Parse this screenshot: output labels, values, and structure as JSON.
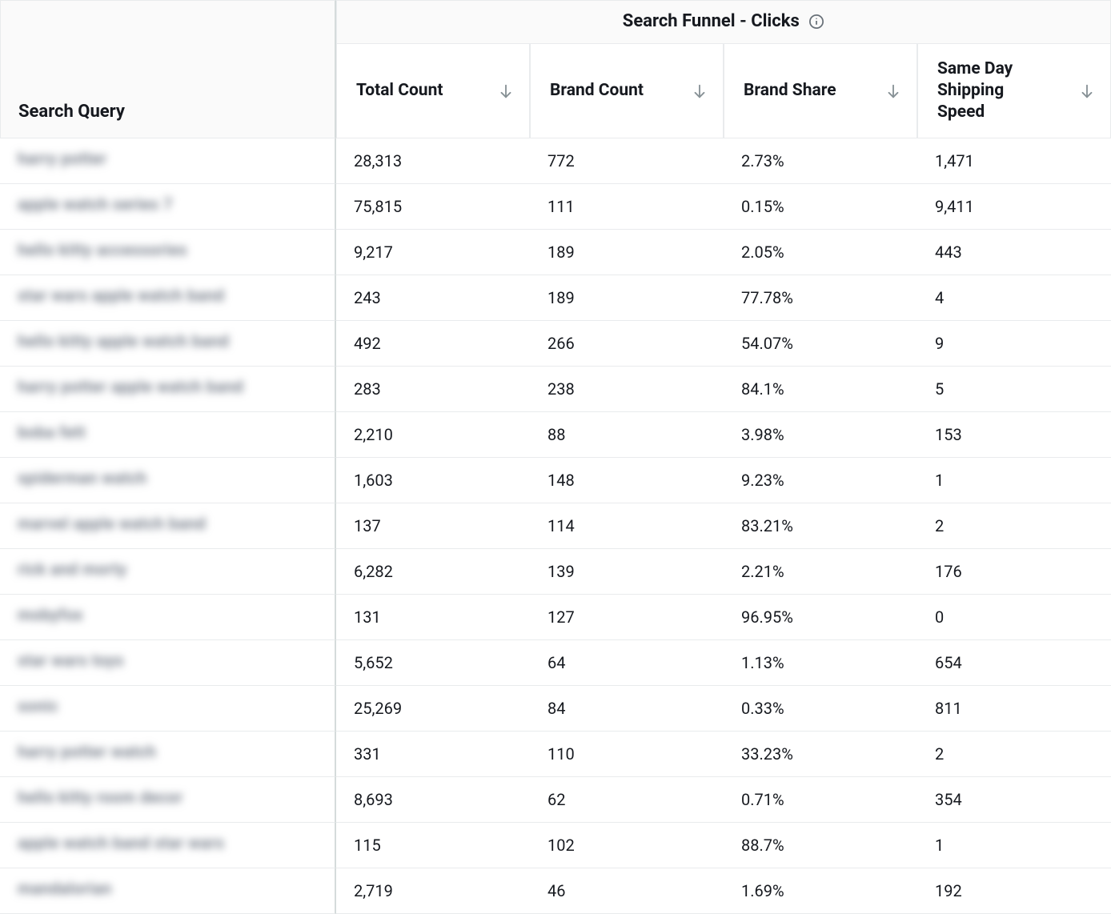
{
  "table": {
    "group_header": "Search Funnel - Clicks",
    "search_query_header": "Search Query",
    "columns": [
      {
        "label": "Total Count"
      },
      {
        "label": "Brand Count"
      },
      {
        "label": "Brand Share"
      },
      {
        "label": "Same Day Shipping Speed"
      }
    ],
    "rows": [
      {
        "query": "harry potter",
        "total_count": "28,313",
        "brand_count": "772",
        "brand_share": "2.73%",
        "same_day": "1,471"
      },
      {
        "query": "apple watch series 7",
        "total_count": "75,815",
        "brand_count": "111",
        "brand_share": "0.15%",
        "same_day": "9,411"
      },
      {
        "query": "hello kitty accessories",
        "total_count": "9,217",
        "brand_count": "189",
        "brand_share": "2.05%",
        "same_day": "443"
      },
      {
        "query": "star wars apple watch band",
        "total_count": "243",
        "brand_count": "189",
        "brand_share": "77.78%",
        "same_day": "4"
      },
      {
        "query": "hello kitty apple watch band",
        "total_count": "492",
        "brand_count": "266",
        "brand_share": "54.07%",
        "same_day": "9"
      },
      {
        "query": "harry potter apple watch band",
        "total_count": "283",
        "brand_count": "238",
        "brand_share": "84.1%",
        "same_day": "5"
      },
      {
        "query": "boba fett",
        "total_count": "2,210",
        "brand_count": "88",
        "brand_share": "3.98%",
        "same_day": "153"
      },
      {
        "query": "spiderman watch",
        "total_count": "1,603",
        "brand_count": "148",
        "brand_share": "9.23%",
        "same_day": "1"
      },
      {
        "query": "marvel apple watch band",
        "total_count": "137",
        "brand_count": "114",
        "brand_share": "83.21%",
        "same_day": "2"
      },
      {
        "query": "rick and morty",
        "total_count": "6,282",
        "brand_count": "139",
        "brand_share": "2.21%",
        "same_day": "176"
      },
      {
        "query": "mobyfox",
        "total_count": "131",
        "brand_count": "127",
        "brand_share": "96.95%",
        "same_day": "0"
      },
      {
        "query": "star wars toys",
        "total_count": "5,652",
        "brand_count": "64",
        "brand_share": "1.13%",
        "same_day": "654"
      },
      {
        "query": "sonic",
        "total_count": "25,269",
        "brand_count": "84",
        "brand_share": "0.33%",
        "same_day": "811"
      },
      {
        "query": "harry potter watch",
        "total_count": "331",
        "brand_count": "110",
        "brand_share": "33.23%",
        "same_day": "2"
      },
      {
        "query": "hello kitty room decor",
        "total_count": "8,693",
        "brand_count": "62",
        "brand_share": "0.71%",
        "same_day": "354"
      },
      {
        "query": "apple watch band star wars",
        "total_count": "115",
        "brand_count": "102",
        "brand_share": "88.7%",
        "same_day": "1"
      },
      {
        "query": "mandalorian",
        "total_count": "2,719",
        "brand_count": "46",
        "brand_share": "1.69%",
        "same_day": "192"
      }
    ]
  },
  "colors": {
    "header_bg": "#fafafa",
    "border": "#e9ebed",
    "divider": "#d5dbdb",
    "text": "#16191f",
    "icon": "#879196"
  }
}
